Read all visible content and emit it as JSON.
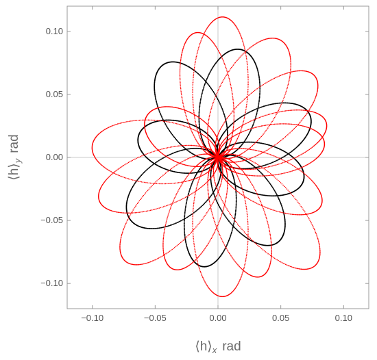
{
  "chart_data": {
    "type": "scatter",
    "title": "",
    "xlabel": {
      "main": "⟨h⟩",
      "sub": "x",
      "unit": "rad"
    },
    "ylabel": {
      "main": "⟨h⟩",
      "sub": "y",
      "unit": "rad"
    },
    "xlim": [
      -0.12,
      0.12
    ],
    "ylim": [
      -0.12,
      0.12
    ],
    "xticks": [
      -0.1,
      -0.05,
      0.0,
      0.05,
      0.1
    ],
    "yticks": [
      -0.1,
      -0.05,
      0.0,
      0.05,
      0.1
    ],
    "xtick_labels": [
      "−0.10",
      "−0.05",
      "0.00",
      "0.05",
      "0.10"
    ],
    "ytick_labels": [
      "−0.10",
      "−0.05",
      "0.00",
      "0.05",
      "0.10"
    ],
    "grid": false,
    "origin_lines": true,
    "legend": "none",
    "series": [
      {
        "color": "#000000",
        "style": "points",
        "lobe_directions_deg": [
          78,
          120,
          165,
          215,
          262,
          305,
          345,
          25
        ],
        "lobe_reach": [
          0.087,
          0.085,
          0.065,
          0.085,
          0.087,
          0.082,
          0.07,
          0.08
        ],
        "lobe_width": [
          0.023,
          0.023,
          0.02,
          0.025,
          0.02,
          0.022,
          0.02,
          0.022
        ]
      },
      {
        "color": "#ff0000",
        "style": "points",
        "lobe_directions_deg": [
          88,
          62,
          100,
          40,
          18,
          150,
          175,
          200,
          228,
          248,
          272,
          290,
          312,
          335,
          8
        ],
        "lobe_reach": [
          0.111,
          0.105,
          0.1,
          0.1,
          0.09,
          0.065,
          0.1,
          0.1,
          0.11,
          0.095,
          0.11,
          0.1,
          0.115,
          0.09,
          0.085
        ],
        "lobe_width": [
          0.022,
          0.025,
          0.02,
          0.022,
          0.02,
          0.02,
          0.025,
          0.022,
          0.024,
          0.02,
          0.022,
          0.02,
          0.024,
          0.02,
          0.02
        ]
      }
    ]
  }
}
